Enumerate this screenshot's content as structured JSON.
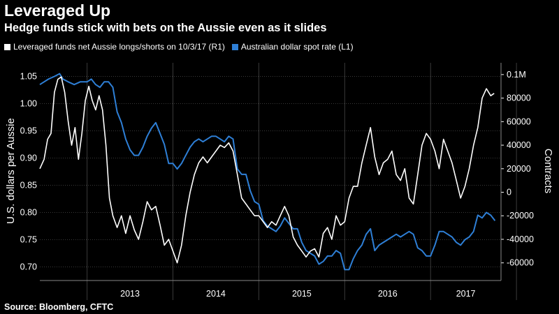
{
  "title": "Leveraged Up",
  "subtitle": "Hedge funds stick with bets on the Aussie even as it slides",
  "source": "Source: Bloomberg, CFTC",
  "colors": {
    "background": "#000000",
    "net_positions": "#ffffff",
    "spot_rate": "#2e7fd6",
    "grid": "#3a3a3a"
  },
  "chart_data": {
    "type": "line",
    "legend": [
      {
        "label": "Leveraged funds net Aussie longs/shorts on 10/3/17 (R1)",
        "color": "#ffffff"
      },
      {
        "label": "Australian dollar spot rate (L1)",
        "color": "#2e7fd6"
      }
    ],
    "left_axis": {
      "label": "U.S. dollars per Aussie",
      "range": [
        0.675,
        1.075
      ],
      "ticks": [
        "0.70",
        "0.75",
        "0.80",
        "0.85",
        "0.90",
        "0.95",
        "1.00",
        "1.05"
      ]
    },
    "right_axis": {
      "label": "Contracts",
      "range": [
        -75000,
        110000
      ],
      "ticks": [
        "-60000",
        "-40000",
        "-20000",
        "0",
        "20000",
        "40000",
        "60000",
        "80000",
        "0.1M"
      ]
    },
    "x_range": [
      2012.45,
      2017.82
    ],
    "x_ticks": [
      "2013",
      "2014",
      "2015",
      "2016",
      "2017"
    ],
    "grid": true,
    "series": [
      {
        "name": "Australian dollar spot rate (L1)",
        "axis": "left",
        "color": "#2e7fd6",
        "points": [
          [
            2012.45,
            1.035
          ],
          [
            2012.5,
            1.04
          ],
          [
            2012.55,
            1.045
          ],
          [
            2012.62,
            1.05
          ],
          [
            2012.68,
            1.055
          ],
          [
            2012.72,
            1.045
          ],
          [
            2012.78,
            1.04
          ],
          [
            2012.85,
            1.035
          ],
          [
            2012.92,
            1.04
          ],
          [
            2013.0,
            1.04
          ],
          [
            2013.05,
            1.045
          ],
          [
            2013.1,
            1.035
          ],
          [
            2013.15,
            1.03
          ],
          [
            2013.2,
            1.04
          ],
          [
            2013.25,
            1.04
          ],
          [
            2013.3,
            1.03
          ],
          [
            2013.35,
            0.985
          ],
          [
            2013.4,
            0.965
          ],
          [
            2013.45,
            0.935
          ],
          [
            2013.5,
            0.915
          ],
          [
            2013.55,
            0.905
          ],
          [
            2013.6,
            0.905
          ],
          [
            2013.65,
            0.92
          ],
          [
            2013.7,
            0.94
          ],
          [
            2013.75,
            0.955
          ],
          [
            2013.8,
            0.965
          ],
          [
            2013.85,
            0.945
          ],
          [
            2013.9,
            0.925
          ],
          [
            2013.95,
            0.89
          ],
          [
            2014.0,
            0.89
          ],
          [
            2014.05,
            0.88
          ],
          [
            2014.1,
            0.89
          ],
          [
            2014.15,
            0.905
          ],
          [
            2014.2,
            0.92
          ],
          [
            2014.25,
            0.93
          ],
          [
            2014.3,
            0.935
          ],
          [
            2014.35,
            0.93
          ],
          [
            2014.4,
            0.935
          ],
          [
            2014.45,
            0.94
          ],
          [
            2014.5,
            0.94
          ],
          [
            2014.55,
            0.935
          ],
          [
            2014.6,
            0.93
          ],
          [
            2014.65,
            0.94
          ],
          [
            2014.7,
            0.935
          ],
          [
            2014.75,
            0.88
          ],
          [
            2014.8,
            0.87
          ],
          [
            2014.85,
            0.87
          ],
          [
            2014.9,
            0.84
          ],
          [
            2014.95,
            0.82
          ],
          [
            2015.0,
            0.815
          ],
          [
            2015.05,
            0.785
          ],
          [
            2015.1,
            0.775
          ],
          [
            2015.15,
            0.77
          ],
          [
            2015.2,
            0.765
          ],
          [
            2015.25,
            0.775
          ],
          [
            2015.3,
            0.79
          ],
          [
            2015.35,
            0.78
          ],
          [
            2015.4,
            0.77
          ],
          [
            2015.45,
            0.77
          ],
          [
            2015.5,
            0.745
          ],
          [
            2015.55,
            0.73
          ],
          [
            2015.6,
            0.725
          ],
          [
            2015.65,
            0.72
          ],
          [
            2015.7,
            0.705
          ],
          [
            2015.75,
            0.71
          ],
          [
            2015.8,
            0.72
          ],
          [
            2015.85,
            0.72
          ],
          [
            2015.9,
            0.73
          ],
          [
            2015.95,
            0.725
          ],
          [
            2016.0,
            0.695
          ],
          [
            2016.05,
            0.695
          ],
          [
            2016.1,
            0.715
          ],
          [
            2016.15,
            0.73
          ],
          [
            2016.2,
            0.74
          ],
          [
            2016.25,
            0.76
          ],
          [
            2016.3,
            0.77
          ],
          [
            2016.35,
            0.73
          ],
          [
            2016.4,
            0.74
          ],
          [
            2016.45,
            0.745
          ],
          [
            2016.5,
            0.75
          ],
          [
            2016.55,
            0.755
          ],
          [
            2016.6,
            0.76
          ],
          [
            2016.65,
            0.755
          ],
          [
            2016.7,
            0.76
          ],
          [
            2016.75,
            0.765
          ],
          [
            2016.8,
            0.76
          ],
          [
            2016.85,
            0.735
          ],
          [
            2016.9,
            0.73
          ],
          [
            2016.95,
            0.72
          ],
          [
            2017.0,
            0.72
          ],
          [
            2017.05,
            0.74
          ],
          [
            2017.1,
            0.765
          ],
          [
            2017.15,
            0.765
          ],
          [
            2017.2,
            0.76
          ],
          [
            2017.25,
            0.755
          ],
          [
            2017.3,
            0.745
          ],
          [
            2017.35,
            0.74
          ],
          [
            2017.4,
            0.75
          ],
          [
            2017.45,
            0.755
          ],
          [
            2017.5,
            0.765
          ],
          [
            2017.55,
            0.795
          ],
          [
            2017.6,
            0.79
          ],
          [
            2017.65,
            0.8
          ],
          [
            2017.7,
            0.795
          ],
          [
            2017.75,
            0.785
          ]
        ]
      },
      {
        "name": "Leveraged funds net Aussie longs/shorts on 10/3/17 (R1)",
        "axis": "right",
        "color": "#ffffff",
        "points": [
          [
            2012.45,
            20000
          ],
          [
            2012.5,
            28000
          ],
          [
            2012.54,
            45000
          ],
          [
            2012.58,
            50000
          ],
          [
            2012.62,
            85000
          ],
          [
            2012.66,
            96000
          ],
          [
            2012.7,
            98000
          ],
          [
            2012.74,
            85000
          ],
          [
            2012.78,
            60000
          ],
          [
            2012.82,
            40000
          ],
          [
            2012.86,
            55000
          ],
          [
            2012.9,
            28000
          ],
          [
            2012.94,
            50000
          ],
          [
            2012.98,
            78000
          ],
          [
            2013.02,
            90000
          ],
          [
            2013.06,
            78000
          ],
          [
            2013.1,
            70000
          ],
          [
            2013.14,
            82000
          ],
          [
            2013.18,
            70000
          ],
          [
            2013.22,
            40000
          ],
          [
            2013.26,
            -5000
          ],
          [
            2013.3,
            -20000
          ],
          [
            2013.35,
            -30000
          ],
          [
            2013.4,
            -20000
          ],
          [
            2013.45,
            -35000
          ],
          [
            2013.5,
            -20000
          ],
          [
            2013.55,
            -32000
          ],
          [
            2013.6,
            -40000
          ],
          [
            2013.65,
            -25000
          ],
          [
            2013.7,
            -8000
          ],
          [
            2013.75,
            -15000
          ],
          [
            2013.8,
            -12000
          ],
          [
            2013.85,
            -28000
          ],
          [
            2013.9,
            -45000
          ],
          [
            2013.95,
            -40000
          ],
          [
            2014.0,
            -50000
          ],
          [
            2014.05,
            -60000
          ],
          [
            2014.1,
            -45000
          ],
          [
            2014.15,
            -20000
          ],
          [
            2014.2,
            0
          ],
          [
            2014.25,
            15000
          ],
          [
            2014.3,
            25000
          ],
          [
            2014.35,
            30000
          ],
          [
            2014.4,
            25000
          ],
          [
            2014.45,
            30000
          ],
          [
            2014.5,
            35000
          ],
          [
            2014.55,
            40000
          ],
          [
            2014.6,
            38000
          ],
          [
            2014.65,
            42000
          ],
          [
            2014.7,
            35000
          ],
          [
            2014.75,
            15000
          ],
          [
            2014.8,
            -5000
          ],
          [
            2014.85,
            -10000
          ],
          [
            2014.9,
            -15000
          ],
          [
            2014.95,
            -20000
          ],
          [
            2015.0,
            -20000
          ],
          [
            2015.05,
            -25000
          ],
          [
            2015.1,
            -30000
          ],
          [
            2015.15,
            -25000
          ],
          [
            2015.2,
            -28000
          ],
          [
            2015.25,
            -20000
          ],
          [
            2015.3,
            -12000
          ],
          [
            2015.35,
            -20000
          ],
          [
            2015.4,
            -38000
          ],
          [
            2015.45,
            -45000
          ],
          [
            2015.5,
            -50000
          ],
          [
            2015.55,
            -55000
          ],
          [
            2015.6,
            -50000
          ],
          [
            2015.65,
            -48000
          ],
          [
            2015.7,
            -55000
          ],
          [
            2015.75,
            -35000
          ],
          [
            2015.8,
            -30000
          ],
          [
            2015.85,
            -40000
          ],
          [
            2015.9,
            -20000
          ],
          [
            2015.95,
            -28000
          ],
          [
            2016.0,
            -25000
          ],
          [
            2016.05,
            -5000
          ],
          [
            2016.1,
            5000
          ],
          [
            2016.15,
            5000
          ],
          [
            2016.2,
            25000
          ],
          [
            2016.25,
            40000
          ],
          [
            2016.3,
            55000
          ],
          [
            2016.35,
            30000
          ],
          [
            2016.4,
            15000
          ],
          [
            2016.45,
            25000
          ],
          [
            2016.5,
            28000
          ],
          [
            2016.55,
            35000
          ],
          [
            2016.6,
            15000
          ],
          [
            2016.65,
            10000
          ],
          [
            2016.7,
            20000
          ],
          [
            2016.75,
            -5000
          ],
          [
            2016.8,
            -10000
          ],
          [
            2016.85,
            15000
          ],
          [
            2016.9,
            40000
          ],
          [
            2016.95,
            50000
          ],
          [
            2017.0,
            45000
          ],
          [
            2017.05,
            35000
          ],
          [
            2017.1,
            20000
          ],
          [
            2017.15,
            45000
          ],
          [
            2017.2,
            35000
          ],
          [
            2017.25,
            25000
          ],
          [
            2017.3,
            10000
          ],
          [
            2017.35,
            -5000
          ],
          [
            2017.4,
            5000
          ],
          [
            2017.45,
            20000
          ],
          [
            2017.5,
            40000
          ],
          [
            2017.55,
            55000
          ],
          [
            2017.6,
            80000
          ],
          [
            2017.65,
            88000
          ],
          [
            2017.7,
            82000
          ],
          [
            2017.74,
            84000
          ]
        ]
      }
    ]
  }
}
